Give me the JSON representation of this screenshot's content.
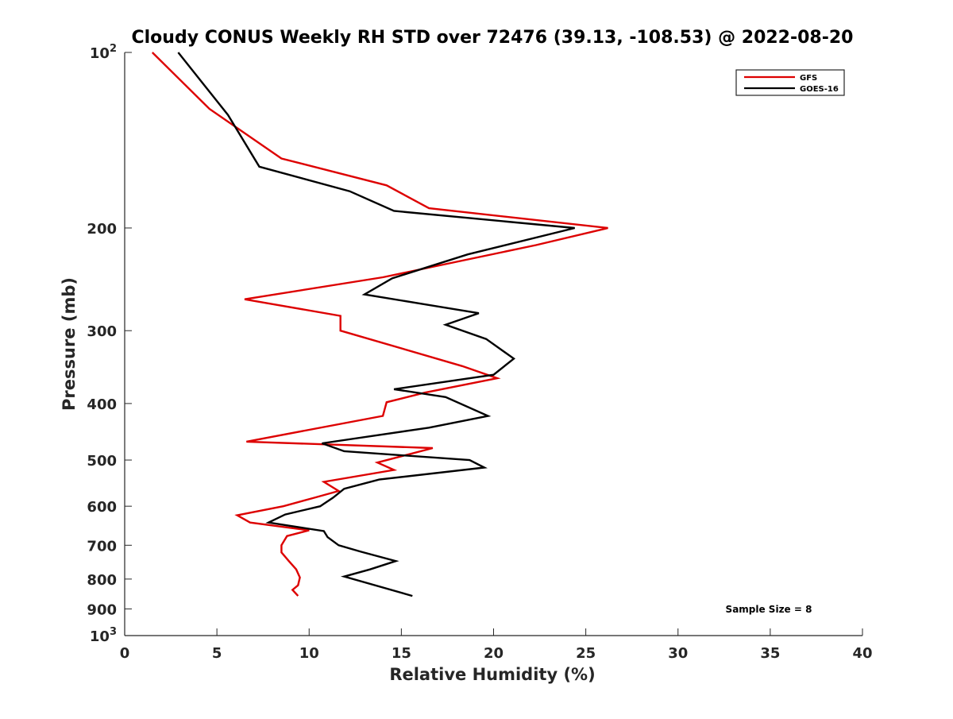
{
  "chart_data": {
    "type": "line",
    "title": "Cloudy CONUS Weekly RH STD over 72476 (39.13, -108.53) @ 2022-08-20",
    "xlabel": "Relative Humidity (%)",
    "ylabel": "Pressure (mb)",
    "xlim": [
      0,
      40
    ],
    "ylim": [
      100,
      1000
    ],
    "y_scale": "log",
    "y_reversed": true,
    "x_ticks": [
      0,
      5,
      10,
      15,
      20,
      25,
      30,
      35,
      40
    ],
    "y_ticks": [
      {
        "value": 100,
        "label": "10",
        "sup": "2"
      },
      {
        "value": 200,
        "label": "200",
        "sup": ""
      },
      {
        "value": 300,
        "label": "300",
        "sup": ""
      },
      {
        "value": 400,
        "label": "400",
        "sup": ""
      },
      {
        "value": 500,
        "label": "500",
        "sup": ""
      },
      {
        "value": 600,
        "label": "600",
        "sup": ""
      },
      {
        "value": 700,
        "label": "700",
        "sup": ""
      },
      {
        "value": 800,
        "label": "800",
        "sup": ""
      },
      {
        "value": 900,
        "label": "900",
        "sup": ""
      },
      {
        "value": 1000,
        "label": "10",
        "sup": "3"
      }
    ],
    "grid": false,
    "legend_position": "top-right",
    "annotation": "Sample Size = 8",
    "series": [
      {
        "name": "GFS",
        "color": "#dd0000",
        "points": [
          [
            1.5,
            100
          ],
          [
            4.6,
            125
          ],
          [
            8.5,
            152
          ],
          [
            14.2,
            169
          ],
          [
            16.5,
            185
          ],
          [
            26.2,
            200
          ],
          [
            22.3,
            214
          ],
          [
            14.0,
            243
          ],
          [
            6.5,
            265
          ],
          [
            11.7,
            283
          ],
          [
            11.7,
            300
          ],
          [
            18.3,
            345
          ],
          [
            20.2,
            362
          ],
          [
            16.3,
            383
          ],
          [
            14.2,
            398
          ],
          [
            14.0,
            420
          ],
          [
            6.6,
            465
          ],
          [
            16.7,
            477
          ],
          [
            13.7,
            505
          ],
          [
            14.6,
            520
          ],
          [
            10.8,
            545
          ],
          [
            11.6,
            565
          ],
          [
            10.3,
            580
          ],
          [
            8.6,
            600
          ],
          [
            6.1,
            622
          ],
          [
            6.8,
            640
          ],
          [
            10.0,
            660
          ],
          [
            8.8,
            675
          ],
          [
            8.5,
            700
          ],
          [
            8.5,
            720
          ],
          [
            8.9,
            745
          ],
          [
            9.3,
            770
          ],
          [
            9.5,
            795
          ],
          [
            9.4,
            820
          ],
          [
            9.1,
            835
          ],
          [
            9.4,
            855
          ]
        ]
      },
      {
        "name": "GOES-16",
        "color": "#000000",
        "points": [
          [
            2.9,
            100
          ],
          [
            5.6,
            128
          ],
          [
            7.3,
            157
          ],
          [
            12.2,
            173
          ],
          [
            14.6,
            187
          ],
          [
            24.4,
            200
          ],
          [
            18.6,
            222
          ],
          [
            14.5,
            244
          ],
          [
            13.0,
            260
          ],
          [
            19.2,
            280
          ],
          [
            17.4,
            293
          ],
          [
            19.6,
            310
          ],
          [
            21.1,
            335
          ],
          [
            20.0,
            357
          ],
          [
            14.6,
            378
          ],
          [
            17.4,
            390
          ],
          [
            19.7,
            420
          ],
          [
            16.5,
            440
          ],
          [
            10.7,
            468
          ],
          [
            11.9,
            483
          ],
          [
            18.7,
            500
          ],
          [
            19.5,
            515
          ],
          [
            13.8,
            540
          ],
          [
            11.9,
            560
          ],
          [
            11.3,
            580
          ],
          [
            10.6,
            600
          ],
          [
            8.7,
            620
          ],
          [
            7.8,
            640
          ],
          [
            10.8,
            662
          ],
          [
            11.0,
            678
          ],
          [
            11.6,
            700
          ],
          [
            12.8,
            718
          ],
          [
            14.7,
            745
          ],
          [
            13.3,
            770
          ],
          [
            11.9,
            792
          ],
          [
            15.6,
            855
          ]
        ]
      }
    ]
  }
}
